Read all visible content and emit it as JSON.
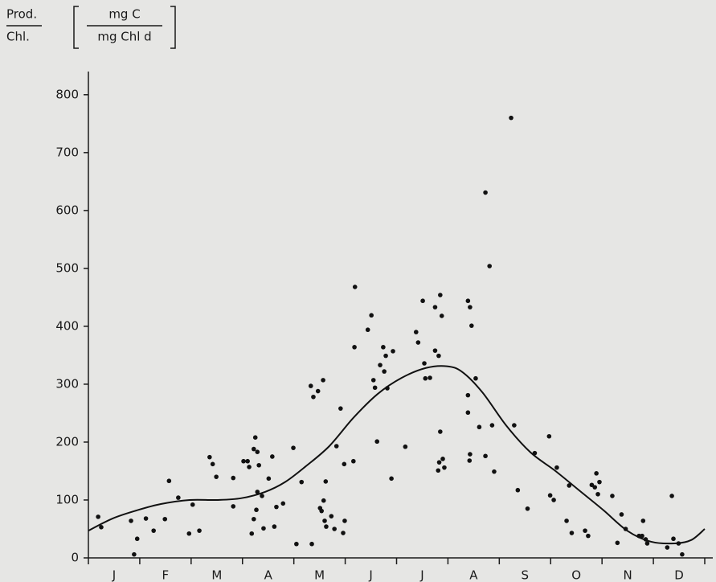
{
  "chart_data": {
    "type": "scatter",
    "ylabel_top": "Prod.",
    "ylabel_bottom": "Chl.",
    "unit_top": "mg C",
    "unit_bottom": "mg Chl d",
    "categories": [
      "J",
      "F",
      "M",
      "A",
      "M",
      "J",
      "J",
      "A",
      "S",
      "O",
      "N",
      "D"
    ],
    "xlim": [
      0,
      12
    ],
    "xticks": [
      0,
      1,
      2,
      3,
      4,
      5,
      6,
      7,
      8,
      9,
      10,
      11,
      12
    ],
    "ylim": [
      0,
      840
    ],
    "yticks": [
      0,
      100,
      200,
      300,
      400,
      500,
      600,
      700,
      800
    ],
    "grid": false,
    "series": [
      {
        "type": "scatter",
        "color": "#111111",
        "x": [
          0.19,
          0.25,
          0.83,
          0.89,
          0.95,
          1.12,
          1.27,
          1.49,
          1.57,
          1.75,
          1.96,
          2.03,
          2.16,
          2.36,
          2.42,
          2.49,
          2.82,
          2.82,
          3.02,
          3.1,
          3.13,
          3.18,
          3.22,
          3.22,
          3.25,
          3.27,
          3.29,
          3.29,
          3.32,
          3.38,
          3.41,
          3.51,
          3.58,
          3.62,
          3.66,
          3.79,
          3.99,
          4.05,
          4.15,
          4.33,
          4.38,
          4.47,
          4.57,
          4.35,
          4.51,
          4.54,
          4.58,
          4.6,
          4.62,
          4.63,
          4.73,
          4.79,
          4.83,
          4.91,
          4.96,
          4.99,
          4.98,
          5.16,
          5.18,
          5.19,
          5.44,
          5.51,
          5.55,
          5.58,
          5.62,
          5.68,
          5.74,
          5.76,
          5.79,
          5.82,
          5.9,
          5.93,
          6.17,
          6.38,
          6.42,
          6.51,
          6.54,
          6.56,
          6.65,
          6.75,
          6.75,
          6.82,
          6.83,
          6.85,
          6.88,
          6.85,
          6.9,
          6.93,
          6.81,
          7.39,
          7.43,
          7.46,
          7.39,
          7.42,
          7.43,
          7.39,
          7.54,
          7.61,
          7.73,
          7.73,
          7.81,
          7.86,
          7.9,
          8.23,
          8.29,
          8.36,
          8.55,
          8.69,
          8.97,
          8.99,
          9.06,
          9.12,
          9.31,
          9.36,
          9.41,
          9.67,
          9.73,
          9.8,
          9.86,
          9.89,
          9.92,
          9.95,
          10.2,
          10.3,
          10.38,
          10.46,
          10.72,
          10.78,
          10.8,
          10.85,
          10.88,
          11.27,
          11.39,
          11.36,
          11.49,
          11.56
        ],
        "values": [
          71,
          53,
          64,
          6,
          33,
          68,
          47,
          67,
          133,
          104,
          42,
          92,
          47,
          174,
          162,
          140,
          138,
          89,
          167,
          167,
          157,
          42,
          67,
          188,
          208,
          83,
          183,
          114,
          160,
          107,
          51,
          137,
          175,
          54,
          88,
          94,
          190,
          24,
          131,
          297,
          278,
          288,
          307,
          24,
          86,
          81,
          99,
          64,
          132,
          54,
          72,
          50,
          193,
          258,
          43,
          64,
          162,
          167,
          364,
          468,
          394,
          419,
          307,
          294,
          201,
          333,
          364,
          322,
          349,
          293,
          137,
          357,
          192,
          390,
          372,
          444,
          336,
          310,
          311,
          433,
          358,
          349,
          165,
          454,
          418,
          218,
          171,
          156,
          151,
          444,
          433,
          401,
          281,
          168,
          179,
          251,
          310,
          226,
          631,
          176,
          504,
          229,
          149,
          760,
          229,
          117,
          85,
          181,
          210,
          108,
          100,
          156,
          64,
          125,
          43,
          47,
          38,
          126,
          122,
          146,
          110,
          131,
          107,
          26,
          75,
          50,
          38,
          38,
          64,
          32,
          25,
          18,
          33,
          107,
          25,
          6
        ]
      },
      {
        "type": "line",
        "color": "#111111",
        "x": [
          0,
          0.47,
          0.94,
          1.41,
          1.97,
          2.5,
          2.97,
          3.44,
          3.83,
          4.23,
          4.69,
          5.16,
          5.63,
          6.1,
          6.57,
          6.98,
          7.28,
          7.67,
          8.14,
          8.61,
          9.08,
          9.55,
          10.02,
          10.49,
          10.95,
          11.42,
          11.74,
          12
        ],
        "values": [
          47,
          68,
          82,
          93,
          100,
          100,
          103,
          114,
          131,
          158,
          193,
          242,
          283,
          311,
          328,
          331,
          321,
          286,
          228,
          182,
          151,
          117,
          83,
          47,
          28,
          25,
          31,
          50
        ]
      }
    ]
  }
}
